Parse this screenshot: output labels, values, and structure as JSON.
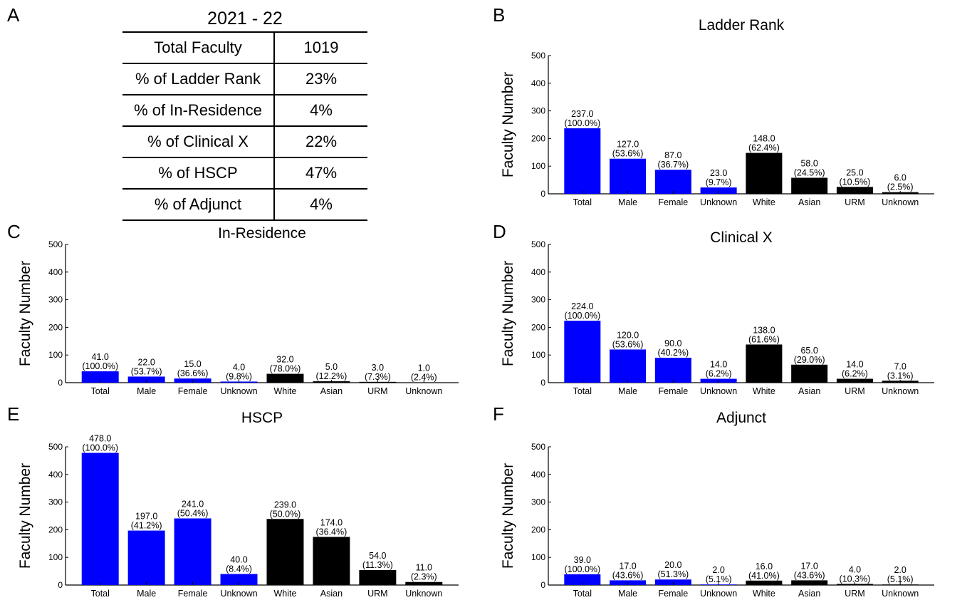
{
  "panel_letters": {
    "A": "A",
    "B": "B",
    "C": "C",
    "D": "D",
    "E": "E",
    "F": "F"
  },
  "table": {
    "title": "2021 - 22",
    "rows": [
      {
        "label": "Total Faculty",
        "value": "1019"
      },
      {
        "label": "% of Ladder Rank",
        "value": "23%"
      },
      {
        "label": "% of In-Residence",
        "value": "4%"
      },
      {
        "label": "% of Clinical X",
        "value": "22%"
      },
      {
        "label": "% of HSCP",
        "value": "47%"
      },
      {
        "label": "% of Adjunct",
        "value": "4%"
      }
    ]
  },
  "colors": {
    "gender_bar": "#0000ff",
    "race_bar": "#000000",
    "axis": "#000000"
  },
  "chart_data": [
    {
      "panel": "B",
      "type": "bar",
      "title": "Ladder Rank",
      "ylabel": "Faculty Number",
      "xlabel": "",
      "ylim": [
        0,
        500
      ],
      "yticks": [
        "0",
        "100",
        "200",
        "300",
        "400",
        "500"
      ],
      "categories": [
        "Total",
        "Male",
        "Female",
        "Unknown",
        "White",
        "Asian",
        "URM",
        "Unknown"
      ],
      "values": [
        237.0,
        127.0,
        87.0,
        23.0,
        148.0,
        58.0,
        25.0,
        6.0
      ],
      "value_labels": [
        "237.0",
        "127.0",
        "87.0",
        "23.0",
        "148.0",
        "58.0",
        "25.0",
        "6.0"
      ],
      "pct_labels": [
        "(100.0%)",
        "(53.6%)",
        "(36.7%)",
        "(9.7%)",
        "(62.4%)",
        "(24.5%)",
        "(10.5%)",
        "(2.5%)"
      ],
      "bar_colors": [
        "#0000ff",
        "#0000ff",
        "#0000ff",
        "#0000ff",
        "#000000",
        "#000000",
        "#000000",
        "#000000"
      ]
    },
    {
      "panel": "C",
      "type": "bar",
      "title": "In-Residence",
      "ylabel": "Faculty Number",
      "xlabel": "",
      "ylim": [
        0,
        500
      ],
      "yticks": [
        "0",
        "100",
        "200",
        "300",
        "400",
        "500"
      ],
      "categories": [
        "Total",
        "Male",
        "Female",
        "Unknown",
        "White",
        "Asian",
        "URM",
        "Unknown"
      ],
      "values": [
        41.0,
        22.0,
        15.0,
        4.0,
        32.0,
        5.0,
        3.0,
        1.0
      ],
      "value_labels": [
        "41.0",
        "22.0",
        "15.0",
        "4.0",
        "32.0",
        "5.0",
        "3.0",
        "1.0"
      ],
      "pct_labels": [
        "(100.0%)",
        "(53.7%)",
        "(36.6%)",
        "(9.8%)",
        "(78.0%)",
        "(12.2%)",
        "(7.3%)",
        "(2.4%)"
      ],
      "bar_colors": [
        "#0000ff",
        "#0000ff",
        "#0000ff",
        "#0000ff",
        "#000000",
        "#000000",
        "#000000",
        "#000000"
      ]
    },
    {
      "panel": "D",
      "type": "bar",
      "title": "Clinical X",
      "ylabel": "Faculty Number",
      "xlabel": "",
      "ylim": [
        0,
        500
      ],
      "yticks": [
        "0",
        "100",
        "200",
        "300",
        "400",
        "500"
      ],
      "categories": [
        "Total",
        "Male",
        "Female",
        "Unknown",
        "White",
        "Asian",
        "URM",
        "Unknown"
      ],
      "values": [
        224.0,
        120.0,
        90.0,
        14.0,
        138.0,
        65.0,
        14.0,
        7.0
      ],
      "value_labels": [
        "224.0",
        "120.0",
        "90.0",
        "14.0",
        "138.0",
        "65.0",
        "14.0",
        "7.0"
      ],
      "pct_labels": [
        "(100.0%)",
        "(53.6%)",
        "(40.2%)",
        "(6.2%)",
        "(61.6%)",
        "(29.0%)",
        "(6.2%)",
        "(3.1%)"
      ],
      "bar_colors": [
        "#0000ff",
        "#0000ff",
        "#0000ff",
        "#0000ff",
        "#000000",
        "#000000",
        "#000000",
        "#000000"
      ]
    },
    {
      "panel": "E",
      "type": "bar",
      "title": "HSCP",
      "ylabel": "Faculty Number",
      "xlabel": "",
      "ylim": [
        0,
        500
      ],
      "yticks": [
        "0",
        "100",
        "200",
        "300",
        "400",
        "500"
      ],
      "categories": [
        "Total",
        "Male",
        "Female",
        "Unknown",
        "White",
        "Asian",
        "URM",
        "Unknown"
      ],
      "values": [
        478.0,
        197.0,
        241.0,
        40.0,
        239.0,
        174.0,
        54.0,
        11.0
      ],
      "value_labels": [
        "478.0",
        "197.0",
        "241.0",
        "40.0",
        "239.0",
        "174.0",
        "54.0",
        "11.0"
      ],
      "pct_labels": [
        "(100.0%)",
        "(41.2%)",
        "(50.4%)",
        "(8.4%)",
        "(50.0%)",
        "(36.4%)",
        "(11.3%)",
        "(2.3%)"
      ],
      "bar_colors": [
        "#0000ff",
        "#0000ff",
        "#0000ff",
        "#0000ff",
        "#000000",
        "#000000",
        "#000000",
        "#000000"
      ]
    },
    {
      "panel": "F",
      "type": "bar",
      "title": "Adjunct",
      "ylabel": "Faculty Number",
      "xlabel": "",
      "ylim": [
        0,
        500
      ],
      "yticks": [
        "0",
        "100",
        "200",
        "300",
        "400",
        "500"
      ],
      "categories": [
        "Total",
        "Male",
        "Female",
        "Unknown",
        "White",
        "Asian",
        "URM",
        "Unknown"
      ],
      "values": [
        39.0,
        17.0,
        20.0,
        2.0,
        16.0,
        17.0,
        4.0,
        2.0
      ],
      "value_labels": [
        "39.0",
        "17.0",
        "20.0",
        "2.0",
        "16.0",
        "17.0",
        "4.0",
        "2.0"
      ],
      "pct_labels": [
        "(100.0%)",
        "(43.6%)",
        "(51.3%)",
        "(5.1%)",
        "(41.0%)",
        "(43.6%)",
        "(10.3%)",
        "(5.1%)"
      ],
      "bar_colors": [
        "#0000ff",
        "#0000ff",
        "#0000ff",
        "#0000ff",
        "#000000",
        "#000000",
        "#000000",
        "#000000"
      ]
    }
  ]
}
